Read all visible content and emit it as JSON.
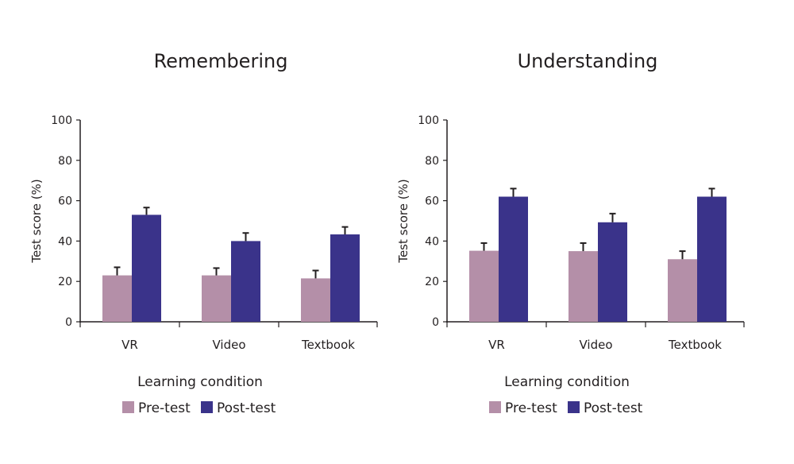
{
  "colors": {
    "pre": "#b48fa8",
    "post": "#3a338a",
    "axis": "#231f20"
  },
  "chart_data": [
    {
      "type": "bar",
      "title": "Remembering",
      "xlabel": "Learning condition",
      "ylabel": "Test score (%)",
      "ylim": [
        0,
        100
      ],
      "yticks": [
        0,
        20,
        40,
        60,
        80,
        100
      ],
      "categories": [
        "VR",
        "Video",
        "Textbook"
      ],
      "legend_position": "bottom",
      "series": [
        {
          "name": "Pre-test",
          "values": [
            23,
            23,
            21.5
          ],
          "error": [
            4,
            3.6,
            3.9
          ]
        },
        {
          "name": "Post-test",
          "values": [
            53,
            40,
            43.3
          ],
          "error": [
            3.6,
            4,
            3.7
          ]
        }
      ]
    },
    {
      "type": "bar",
      "title": "Understanding",
      "xlabel": "Learning condition",
      "ylabel": "Test score (%)",
      "ylim": [
        0,
        100
      ],
      "yticks": [
        0,
        20,
        40,
        60,
        80,
        100
      ],
      "categories": [
        "VR",
        "Video",
        "Textbook"
      ],
      "legend_position": "bottom",
      "series": [
        {
          "name": "Pre-test",
          "values": [
            35.2,
            35,
            31
          ],
          "error": [
            3.8,
            4,
            4
          ]
        },
        {
          "name": "Post-test",
          "values": [
            62,
            49.3,
            62
          ],
          "error": [
            4,
            4.3,
            4
          ]
        }
      ]
    }
  ]
}
